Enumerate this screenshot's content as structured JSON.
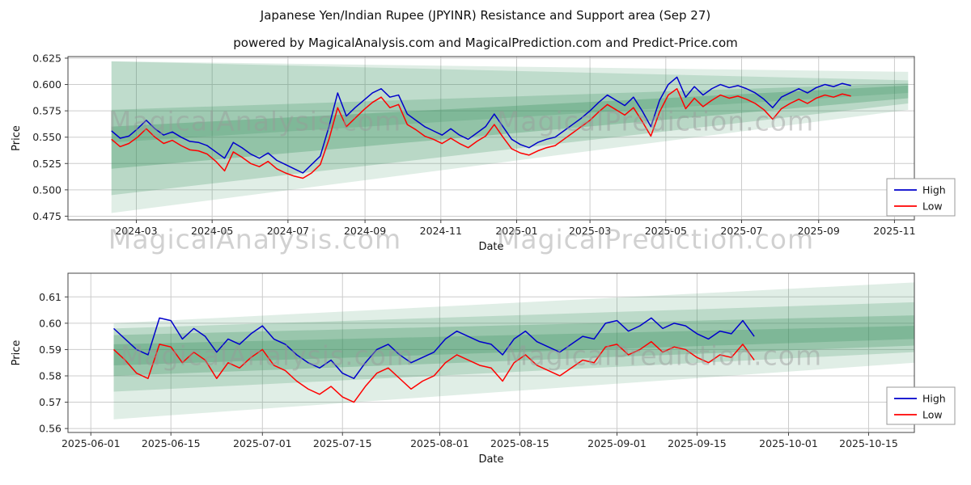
{
  "title": "Japanese Yen/Indian Rupee (JPYINR) Resistance and Support area (Sep 27)",
  "subtitle": "powered by MagicalAnalysis.com and MagicalPrediction.com and Predict-Price.com",
  "watermarks": {
    "rows": [
      {
        "left": "MagicalAnalysis.com",
        "right": "MagicalPrediction.com"
      },
      {
        "left": "MagicalAnalysis.com",
        "right": "MagicalPrediction.com"
      },
      {
        "left": "MagicalAnalysis.com",
        "right": "MagicalPrediction.com"
      }
    ]
  },
  "chart_data": [
    {
      "type": "line",
      "xlabel": "Date",
      "ylabel": "Price",
      "legend_position": "lower right",
      "grid": true,
      "x_range": [
        -26,
        655
      ],
      "ylim": [
        0.4715,
        0.6265
      ],
      "x_ticks": [
        {
          "v": 29,
          "label": "2024-03"
        },
        {
          "v": 90,
          "label": "2024-05"
        },
        {
          "v": 151,
          "label": "2024-07"
        },
        {
          "v": 213,
          "label": "2024-09"
        },
        {
          "v": 274,
          "label": "2024-11"
        },
        {
          "v": 335,
          "label": "2025-01"
        },
        {
          "v": 394,
          "label": "2025-03"
        },
        {
          "v": 455,
          "label": "2025-05"
        },
        {
          "v": 516,
          "label": "2025-07"
        },
        {
          "v": 578,
          "label": "2025-09"
        },
        {
          "v": 639,
          "label": "2025-11"
        }
      ],
      "y_ticks": [
        {
          "v": 0.475,
          "label": "0.475"
        },
        {
          "v": 0.5,
          "label": "0.500"
        },
        {
          "v": 0.525,
          "label": "0.525"
        },
        {
          "v": 0.55,
          "label": "0.550"
        },
        {
          "v": 0.575,
          "label": "0.575"
        },
        {
          "v": 0.6,
          "label": "0.600"
        },
        {
          "v": 0.625,
          "label": "0.625"
        }
      ],
      "x_start": 9,
      "x_step": 7,
      "band_color": "#2e8b57",
      "bands": [
        {
          "alpha": 0.15,
          "pts": [
            [
              9,
              0.622
            ],
            [
              650,
              0.612
            ],
            [
              650,
              0.576
            ],
            [
              9,
              0.478
            ]
          ]
        },
        {
          "alpha": 0.18,
          "pts": [
            [
              9,
              0.622
            ],
            [
              650,
              0.604
            ],
            [
              650,
              0.592
            ],
            [
              9,
              0.545
            ]
          ]
        },
        {
          "alpha": 0.22,
          "pts": [
            [
              9,
              0.576
            ],
            [
              650,
              0.601
            ],
            [
              650,
              0.582
            ],
            [
              9,
              0.495
            ]
          ]
        },
        {
          "alpha": 0.28,
          "pts": [
            [
              9,
              0.56
            ],
            [
              650,
              0.599
            ],
            [
              650,
              0.587
            ],
            [
              9,
              0.52
            ]
          ]
        }
      ],
      "series": [
        {
          "name": "High",
          "color": "#0000cc",
          "values": [
            0.556,
            0.549,
            0.551,
            0.558,
            0.566,
            0.558,
            0.552,
            0.555,
            0.55,
            0.546,
            0.545,
            0.542,
            0.536,
            0.53,
            0.545,
            0.54,
            0.534,
            0.53,
            0.535,
            0.528,
            0.524,
            0.52,
            0.516,
            0.524,
            0.532,
            0.56,
            0.592,
            0.57,
            0.578,
            0.585,
            0.592,
            0.596,
            0.588,
            0.59,
            0.572,
            0.566,
            0.56,
            0.556,
            0.552,
            0.558,
            0.552,
            0.548,
            0.554,
            0.56,
            0.572,
            0.56,
            0.548,
            0.543,
            0.54,
            0.545,
            0.548,
            0.55,
            0.556,
            0.562,
            0.568,
            0.575,
            0.583,
            0.59,
            0.585,
            0.58,
            0.588,
            0.575,
            0.56,
            0.585,
            0.6,
            0.607,
            0.588,
            0.598,
            0.59,
            0.596,
            0.6,
            0.597,
            0.599,
            0.596,
            0.592,
            0.586,
            0.578,
            0.588,
            0.592,
            0.596,
            0.592,
            0.597,
            0.6,
            0.598,
            0.601,
            0.599
          ]
        },
        {
          "name": "Low",
          "color": "#ff0000",
          "values": [
            0.548,
            0.541,
            0.544,
            0.55,
            0.558,
            0.55,
            0.544,
            0.547,
            0.542,
            0.538,
            0.537,
            0.534,
            0.527,
            0.518,
            0.536,
            0.531,
            0.525,
            0.522,
            0.527,
            0.52,
            0.516,
            0.513,
            0.511,
            0.516,
            0.524,
            0.548,
            0.578,
            0.56,
            0.568,
            0.576,
            0.583,
            0.588,
            0.578,
            0.581,
            0.562,
            0.557,
            0.551,
            0.548,
            0.544,
            0.549,
            0.544,
            0.54,
            0.546,
            0.551,
            0.562,
            0.55,
            0.539,
            0.535,
            0.533,
            0.537,
            0.54,
            0.542,
            0.548,
            0.554,
            0.56,
            0.566,
            0.574,
            0.581,
            0.576,
            0.571,
            0.578,
            0.565,
            0.551,
            0.574,
            0.59,
            0.596,
            0.577,
            0.587,
            0.579,
            0.585,
            0.59,
            0.587,
            0.589,
            0.586,
            0.582,
            0.576,
            0.567,
            0.577,
            0.582,
            0.586,
            0.582,
            0.587,
            0.59,
            0.588,
            0.591,
            0.589
          ]
        }
      ]
    },
    {
      "type": "line",
      "xlabel": "Date",
      "ylabel": "Price",
      "legend_position": "lower right",
      "grid": true,
      "x_range": [
        -4,
        144
      ],
      "ylim": [
        0.5585,
        0.619
      ],
      "x_ticks": [
        {
          "v": 0,
          "label": "2025-06-01"
        },
        {
          "v": 14,
          "label": "2025-06-15"
        },
        {
          "v": 30,
          "label": "2025-07-01"
        },
        {
          "v": 44,
          "label": "2025-07-15"
        },
        {
          "v": 61,
          "label": "2025-08-01"
        },
        {
          "v": 75,
          "label": "2025-08-15"
        },
        {
          "v": 92,
          "label": "2025-09-01"
        },
        {
          "v": 106,
          "label": "2025-09-15"
        },
        {
          "v": 122,
          "label": "2025-10-01"
        },
        {
          "v": 136,
          "label": "2025-10-15"
        }
      ],
      "y_ticks": [
        {
          "v": 0.56,
          "label": "0.56"
        },
        {
          "v": 0.57,
          "label": "0.57"
        },
        {
          "v": 0.58,
          "label": "0.58"
        },
        {
          "v": 0.59,
          "label": "0.59"
        },
        {
          "v": 0.6,
          "label": "0.60"
        },
        {
          "v": 0.61,
          "label": "0.61"
        }
      ],
      "x_start": 4,
      "x_step": 2,
      "band_color": "#2e8b57",
      "bands": [
        {
          "alpha": 0.15,
          "pts": [
            [
              4,
              0.6
            ],
            [
              144,
              0.6155
            ],
            [
              144,
              0.585
            ],
            [
              4,
              0.5635
            ]
          ]
        },
        {
          "alpha": 0.2,
          "pts": [
            [
              4,
              0.598
            ],
            [
              144,
              0.608
            ],
            [
              144,
              0.589
            ],
            [
              4,
              0.574
            ]
          ]
        },
        {
          "alpha": 0.25,
          "pts": [
            [
              4,
              0.5955
            ],
            [
              144,
              0.603
            ],
            [
              144,
              0.5915
            ],
            [
              4,
              0.58
            ]
          ]
        },
        {
          "alpha": 0.25,
          "pts": [
            [
              4,
              0.592
            ],
            [
              144,
              0.599
            ],
            [
              144,
              0.594
            ],
            [
              4,
              0.584
            ]
          ]
        }
      ],
      "series": [
        {
          "name": "High",
          "color": "#0000cc",
          "values": [
            0.598,
            0.594,
            0.59,
            0.588,
            0.602,
            0.601,
            0.594,
            0.598,
            0.595,
            0.589,
            0.594,
            0.592,
            0.596,
            0.599,
            0.594,
            0.592,
            0.588,
            0.585,
            0.583,
            0.586,
            0.581,
            0.579,
            0.585,
            0.59,
            0.592,
            0.588,
            0.585,
            0.587,
            0.589,
            0.594,
            0.597,
            0.595,
            0.593,
            0.592,
            0.588,
            0.594,
            0.597,
            0.593,
            0.591,
            0.589,
            0.592,
            0.595,
            0.594,
            0.6,
            0.601,
            0.597,
            0.599,
            0.602,
            0.598,
            0.6,
            0.599,
            0.596,
            0.594,
            0.597,
            0.596,
            0.601,
            0.595
          ]
        },
        {
          "name": "Low",
          "color": "#ff0000",
          "values": [
            0.59,
            0.586,
            0.581,
            0.579,
            0.592,
            0.591,
            0.585,
            0.589,
            0.586,
            0.579,
            0.585,
            0.583,
            0.587,
            0.59,
            0.584,
            0.582,
            0.578,
            0.575,
            0.573,
            0.576,
            0.572,
            0.57,
            0.576,
            0.581,
            0.583,
            0.579,
            0.575,
            0.578,
            0.58,
            0.585,
            0.588,
            0.586,
            0.584,
            0.583,
            0.578,
            0.585,
            0.588,
            0.584,
            0.582,
            0.58,
            0.583,
            0.586,
            0.585,
            0.591,
            0.592,
            0.588,
            0.59,
            0.593,
            0.589,
            0.591,
            0.59,
            0.587,
            0.585,
            0.588,
            0.587,
            0.592,
            0.586
          ]
        }
      ]
    }
  ]
}
